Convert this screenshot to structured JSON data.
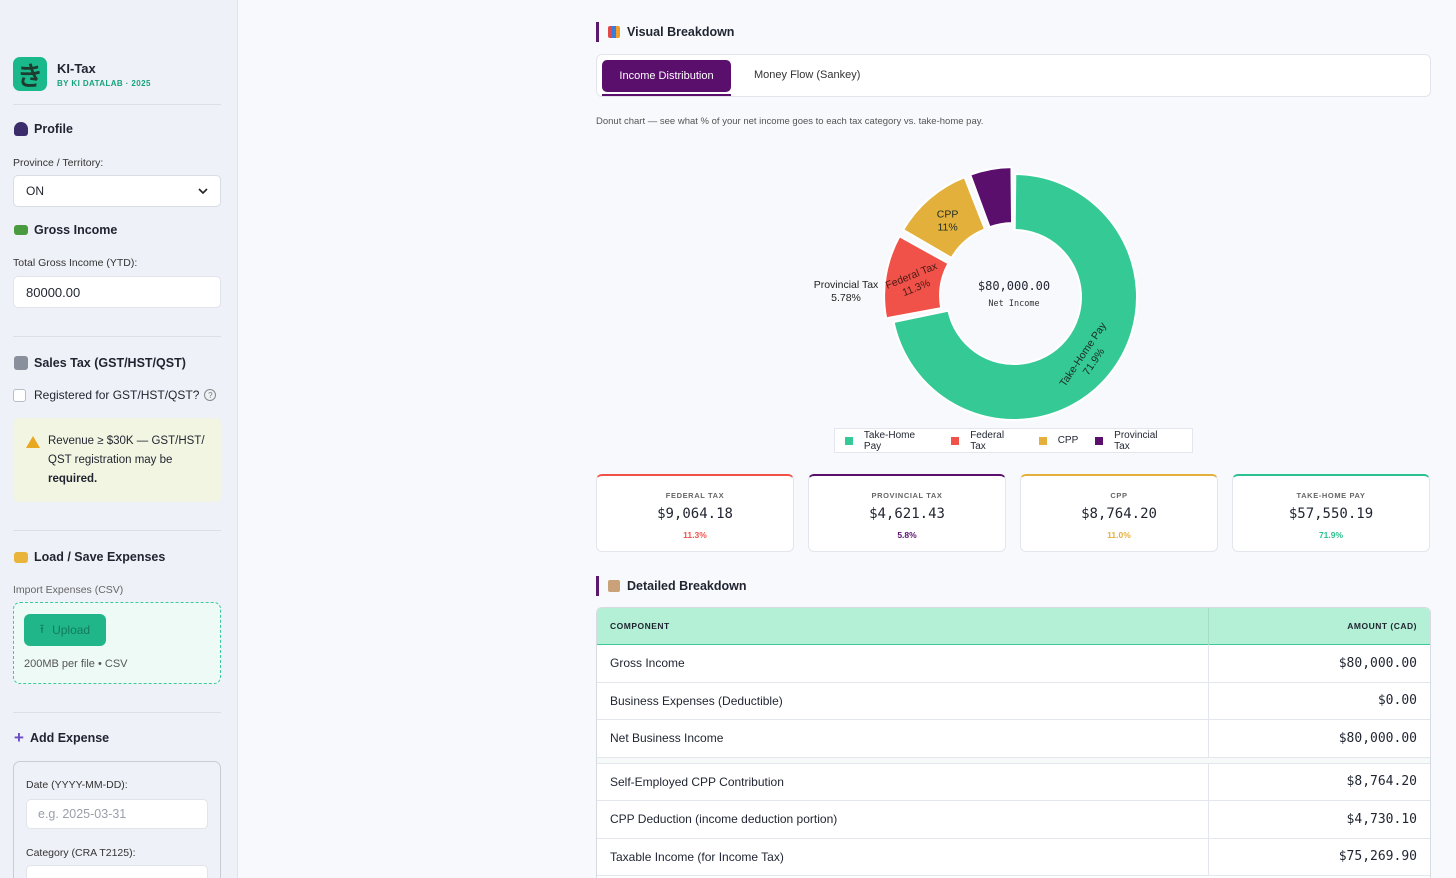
{
  "sidebar": {
    "brand_name": "KI-Tax",
    "brand_sub": "BY KI DATALAB · 2025",
    "profile_title": "Profile",
    "province_label": "Province / Territory:",
    "province_value": "ON",
    "gross_title": "Gross Income",
    "gross_label": "Total Gross Income (YTD):",
    "gross_value": "80000.00",
    "sales_tax_title": "Sales Tax (GST/HST/QST)",
    "registered_label": "Registered for GST/HST/QST?",
    "warning_text": "Revenue ≥ $30K — GST/HST/ QST registration may be ",
    "warning_bold": "required.",
    "load_save_title": "Load / Save Expenses",
    "import_label": "Import Expenses (CSV)",
    "upload_label": "Upload",
    "upload_note": "200MB per file • CSV",
    "add_expense_title": "Add Expense",
    "date_label": "Date (YYYY-MM-DD):",
    "date_placeholder": "e.g. 2025-03-31",
    "category_label": "Category (CRA T2125):"
  },
  "main": {
    "visual_title": "Visual Breakdown",
    "tabs": [
      "Income Distribution",
      "Money Flow (Sankey)"
    ],
    "caption": "Donut chart — see what % of your net income goes to each tax category vs. take-home pay.",
    "cards": [
      {
        "label": "FEDERAL TAX",
        "value": "$9,064.18",
        "pct": "11.3%",
        "color": "#f0524a"
      },
      {
        "label": "PROVINCIAL TAX",
        "value": "$4,621.43",
        "pct": "5.8%",
        "color": "#5a0f6d"
      },
      {
        "label": "CPP",
        "value": "$8,764.20",
        "pct": "11.0%",
        "color": "#e3b13b"
      },
      {
        "label": "TAKE-HOME PAY",
        "value": "$57,550.19",
        "pct": "71.9%",
        "color": "#2bc08f"
      }
    ],
    "detail_title": "Detailed Breakdown",
    "table_headers": [
      "COMPONENT",
      "AMOUNT (CAD)"
    ],
    "table_rows": [
      {
        "component": "Gross Income",
        "amount": "$80,000.00"
      },
      {
        "component": "Business Expenses (Deductible)",
        "amount": "$0.00"
      },
      {
        "component": "Net Business Income",
        "amount": "$80,000.00"
      },
      {
        "component": "Self-Employed CPP Contribution",
        "amount": "$8,764.20"
      },
      {
        "component": "CPP Deduction (income deduction portion)",
        "amount": "$4,730.10"
      },
      {
        "component": "Taxable Income (for Income Tax)",
        "amount": "$75,269.90"
      }
    ]
  },
  "chart_data": {
    "type": "pie",
    "center_value": "$80,000.00",
    "center_label": "Net Income",
    "slices": [
      {
        "label": "Take-Home Pay",
        "pct_label": "71.9%",
        "value": 71.9,
        "color": "#34c995"
      },
      {
        "label": "Federal Tax",
        "pct_label": "11.3%",
        "value": 11.3,
        "color": "#f0524a"
      },
      {
        "label": "CPP",
        "pct_label": "11%",
        "value": 11.0,
        "color": "#e3b13b"
      },
      {
        "label": "Provincial Tax",
        "pct_label": "5.78%",
        "value": 5.78,
        "color": "#5a0f6d"
      }
    ],
    "legend": [
      "Take-Home Pay",
      "Federal Tax",
      "CPP",
      "Provincial Tax"
    ]
  }
}
